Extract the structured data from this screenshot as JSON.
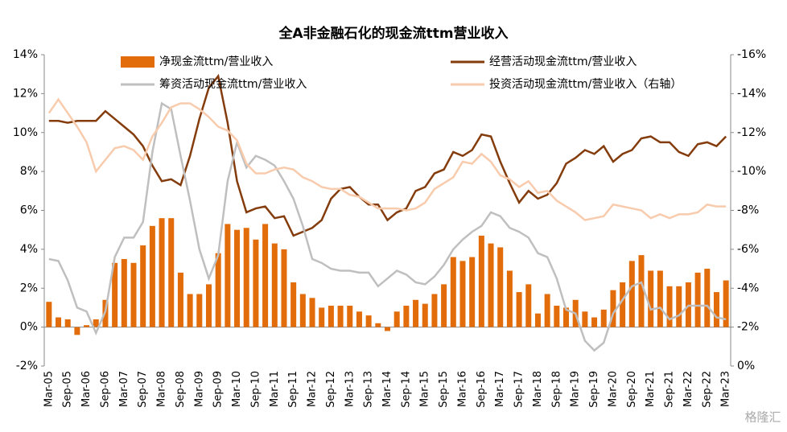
{
  "chart_data": {
    "type": "bar_line",
    "title": "全A非金融石化的现金流ttm营业收入",
    "categories": [
      "Mar-05",
      null,
      "Sep-05",
      null,
      "Mar-06",
      null,
      "Sep-06",
      null,
      "Mar-07",
      null,
      "Sep-07",
      null,
      "Mar-08",
      null,
      "Sep-08",
      null,
      "Mar-09",
      null,
      "Sep-09",
      null,
      "Mar-10",
      null,
      "Sep-10",
      null,
      "Mar-11",
      null,
      "Sep-11",
      null,
      "Mar-12",
      null,
      "Sep-12",
      null,
      "Mar-13",
      null,
      "Sep-13",
      null,
      "Mar-14",
      null,
      "Sep-14",
      null,
      "Mar-15",
      null,
      "Sep-15",
      null,
      "Mar-16",
      null,
      "Sep-16",
      null,
      "Mar-17",
      null,
      "Sep-17",
      null,
      "Mar-18",
      null,
      "Sep-18",
      null,
      "Mar-19",
      null,
      "Sep-19",
      null,
      "Mar-20",
      null,
      "Sep-20",
      null,
      "Mar-21",
      null,
      "Sep-21",
      null,
      "Mar-22",
      null,
      "Sep-22",
      null,
      "Mar-23"
    ],
    "series": [
      {
        "name": "净现金流ttm/营业收入",
        "kind": "bar",
        "color": "#e36c0a",
        "values": [
          1.3,
          0.5,
          0.4,
          -0.4,
          0.1,
          0.4,
          1.4,
          3.3,
          3.5,
          3.3,
          4.2,
          5.2,
          5.6,
          5.6,
          2.8,
          1.7,
          1.7,
          2.2,
          3.8,
          5.3,
          5.0,
          5.1,
          4.5,
          5.3,
          4.3,
          4.0,
          2.3,
          1.7,
          1.5,
          1.0,
          1.1,
          1.1,
          1.1,
          0.8,
          0.6,
          0.2,
          -0.2,
          0.8,
          1.1,
          1.4,
          1.2,
          1.7,
          2.2,
          3.6,
          3.4,
          3.6,
          4.7,
          4.3,
          4.1,
          2.9,
          1.8,
          2.2,
          0.7,
          1.7,
          1.1,
          1.0,
          1.4,
          0.8,
          0.5,
          0.9,
          1.9,
          2.3,
          3.4,
          3.7,
          2.9,
          2.9,
          2.1,
          2.1,
          2.3,
          2.8,
          3.0,
          1.8,
          2.4
        ]
      },
      {
        "name": "经营活动现金流ttm/营业收入",
        "kind": "line",
        "color": "#843c0c",
        "values": [
          10.6,
          10.6,
          10.5,
          10.6,
          10.6,
          10.6,
          11.1,
          10.7,
          10.3,
          9.9,
          9.3,
          8.3,
          7.5,
          7.6,
          7.3,
          8.8,
          10.7,
          12.3,
          12.9,
          10.5,
          7.5,
          5.9,
          6.1,
          6.2,
          5.6,
          5.7,
          4.7,
          4.9,
          5.1,
          5.5,
          6.6,
          7.1,
          7.2,
          6.7,
          6.3,
          6.3,
          5.5,
          5.9,
          6.1,
          7.0,
          7.2,
          7.9,
          8.1,
          9.0,
          8.8,
          9.1,
          9.9,
          9.8,
          8.5,
          7.4,
          6.4,
          7.0,
          6.6,
          6.8,
          7.4,
          8.4,
          8.7,
          9.1,
          8.9,
          9.3,
          8.5,
          8.9,
          9.1,
          9.7,
          9.8,
          9.5,
          9.5,
          9.0,
          8.8,
          9.4,
          9.5,
          9.3,
          9.8
        ]
      },
      {
        "name": "筹资活动现金流ttm/营业收入",
        "kind": "line",
        "color": "#bfbfbf",
        "values": [
          3.5,
          3.4,
          2.4,
          1.0,
          0.8,
          -0.3,
          0.8,
          3.6,
          4.6,
          4.6,
          5.4,
          9.0,
          11.5,
          11.2,
          8.8,
          6.5,
          4.0,
          2.5,
          3.7,
          7.5,
          9.5,
          8.2,
          8.8,
          8.6,
          8.3,
          7.5,
          6.6,
          5.2,
          3.5,
          3.3,
          3.0,
          2.9,
          2.9,
          2.8,
          2.8,
          2.1,
          2.5,
          2.9,
          2.7,
          2.3,
          2.2,
          2.6,
          3.2,
          4.0,
          4.5,
          4.9,
          5.2,
          5.9,
          5.7,
          5.1,
          4.9,
          4.6,
          3.8,
          3.6,
          2.5,
          0.9,
          0.7,
          -0.7,
          -1.2,
          -0.8,
          0.7,
          1.4,
          2.1,
          2.3,
          0.9,
          1.0,
          0.4,
          0.6,
          1.1,
          1.1,
          1.1,
          0.5,
          0.4
        ]
      },
      {
        "name": "投资活动现金流ttm/营业收入（右轴）",
        "kind": "line",
        "axis": "y2",
        "color": "#f8cbad",
        "values": [
          -13.0,
          -13.7,
          -13.0,
          -12.3,
          -11.5,
          -10.0,
          -10.6,
          -11.2,
          -11.3,
          -11.1,
          -10.6,
          -11.8,
          -12.5,
          -13.3,
          -13.5,
          -13.5,
          -13.2,
          -12.8,
          -12.3,
          -12.1,
          -11.6,
          -10.4,
          -9.9,
          -9.9,
          -10.1,
          -10.2,
          -10.1,
          -9.7,
          -9.5,
          -9.2,
          -9.1,
          -9.1,
          -8.8,
          -8.7,
          -8.4,
          -8.1,
          -8.1,
          -8.1,
          -8.0,
          -8.1,
          -8.4,
          -9.1,
          -9.4,
          -9.7,
          -10.5,
          -10.4,
          -10.9,
          -10.5,
          -9.8,
          -9.6,
          -9.2,
          -9.5,
          -8.9,
          -9.0,
          -8.5,
          -8.2,
          -7.9,
          -7.5,
          -7.6,
          -7.7,
          -8.3,
          -8.2,
          -8.1,
          -8.0,
          -7.6,
          -7.8,
          -7.6,
          -7.8,
          -7.8,
          -7.9,
          -8.3,
          -8.2,
          -8.2
        ]
      }
    ],
    "ylim": [
      -2,
      14
    ],
    "yticks": [
      {
        "value": -2,
        "label": "-2%"
      },
      {
        "value": 0,
        "label": "0%"
      },
      {
        "value": 2,
        "label": "2%"
      },
      {
        "value": 4,
        "label": "4%"
      },
      {
        "value": 6,
        "label": "6%"
      },
      {
        "value": 8,
        "label": "8%"
      },
      {
        "value": 10,
        "label": "10%"
      },
      {
        "value": 12,
        "label": "12%"
      },
      {
        "value": 14,
        "label": "14%"
      }
    ],
    "y2lim": [
      0,
      -16
    ],
    "y2ticks": [
      {
        "value": 0,
        "label": "0%"
      },
      {
        "value": -2,
        "label": "-2%"
      },
      {
        "value": -4,
        "label": "-4%"
      },
      {
        "value": -6,
        "label": "-6%"
      },
      {
        "value": -8,
        "label": "-8%"
      },
      {
        "value": -10,
        "label": "-10%"
      },
      {
        "value": -12,
        "label": "-12%"
      },
      {
        "value": -14,
        "label": "-14%"
      },
      {
        "value": -16,
        "label": "-16%"
      }
    ],
    "watermark": "格隆汇"
  }
}
